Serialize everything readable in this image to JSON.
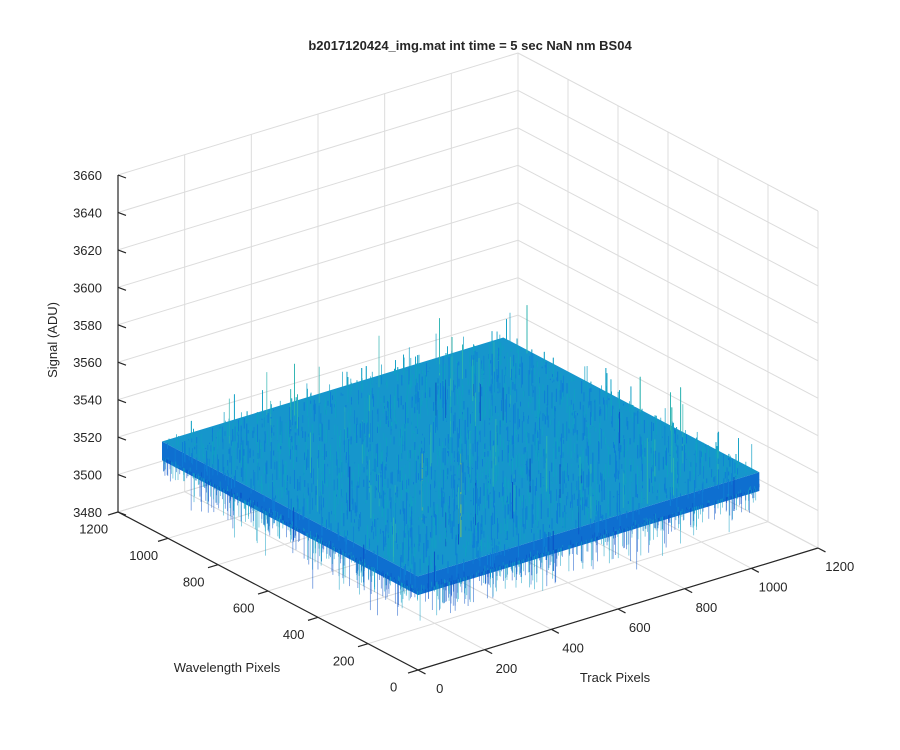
{
  "chart_data": {
    "type": "surface",
    "title": "b2017120424_img.mat int time = 5 sec  NaN nm BS04",
    "xlabel": "Track Pixels",
    "ylabel": "Wavelength Pixels",
    "zlabel": "Signal (ADU)",
    "xlim": [
      0,
      1200
    ],
    "ylim": [
      0,
      1200
    ],
    "zlim": [
      3480,
      3660
    ],
    "x_ticks": [
      "0",
      "200",
      "400",
      "600",
      "800",
      "1000",
      "1200"
    ],
    "y_ticks": [
      "0",
      "200",
      "400",
      "600",
      "800",
      "1000",
      "1200"
    ],
    "z_ticks": [
      "3480",
      "3500",
      "3520",
      "3540",
      "3560",
      "3580",
      "3600",
      "3620",
      "3640",
      "3660"
    ],
    "data_extent": {
      "x": [
        0,
        1024
      ],
      "y": [
        0,
        1024
      ]
    },
    "mean_signal": 3530,
    "noise_range": [
      3495,
      3600
    ],
    "grid": true,
    "colormap": [
      "#0a52c8",
      "#0f7fd6",
      "#12a0c4",
      "#2bb3b0",
      "#7cc16a",
      "#dcd33a"
    ]
  }
}
